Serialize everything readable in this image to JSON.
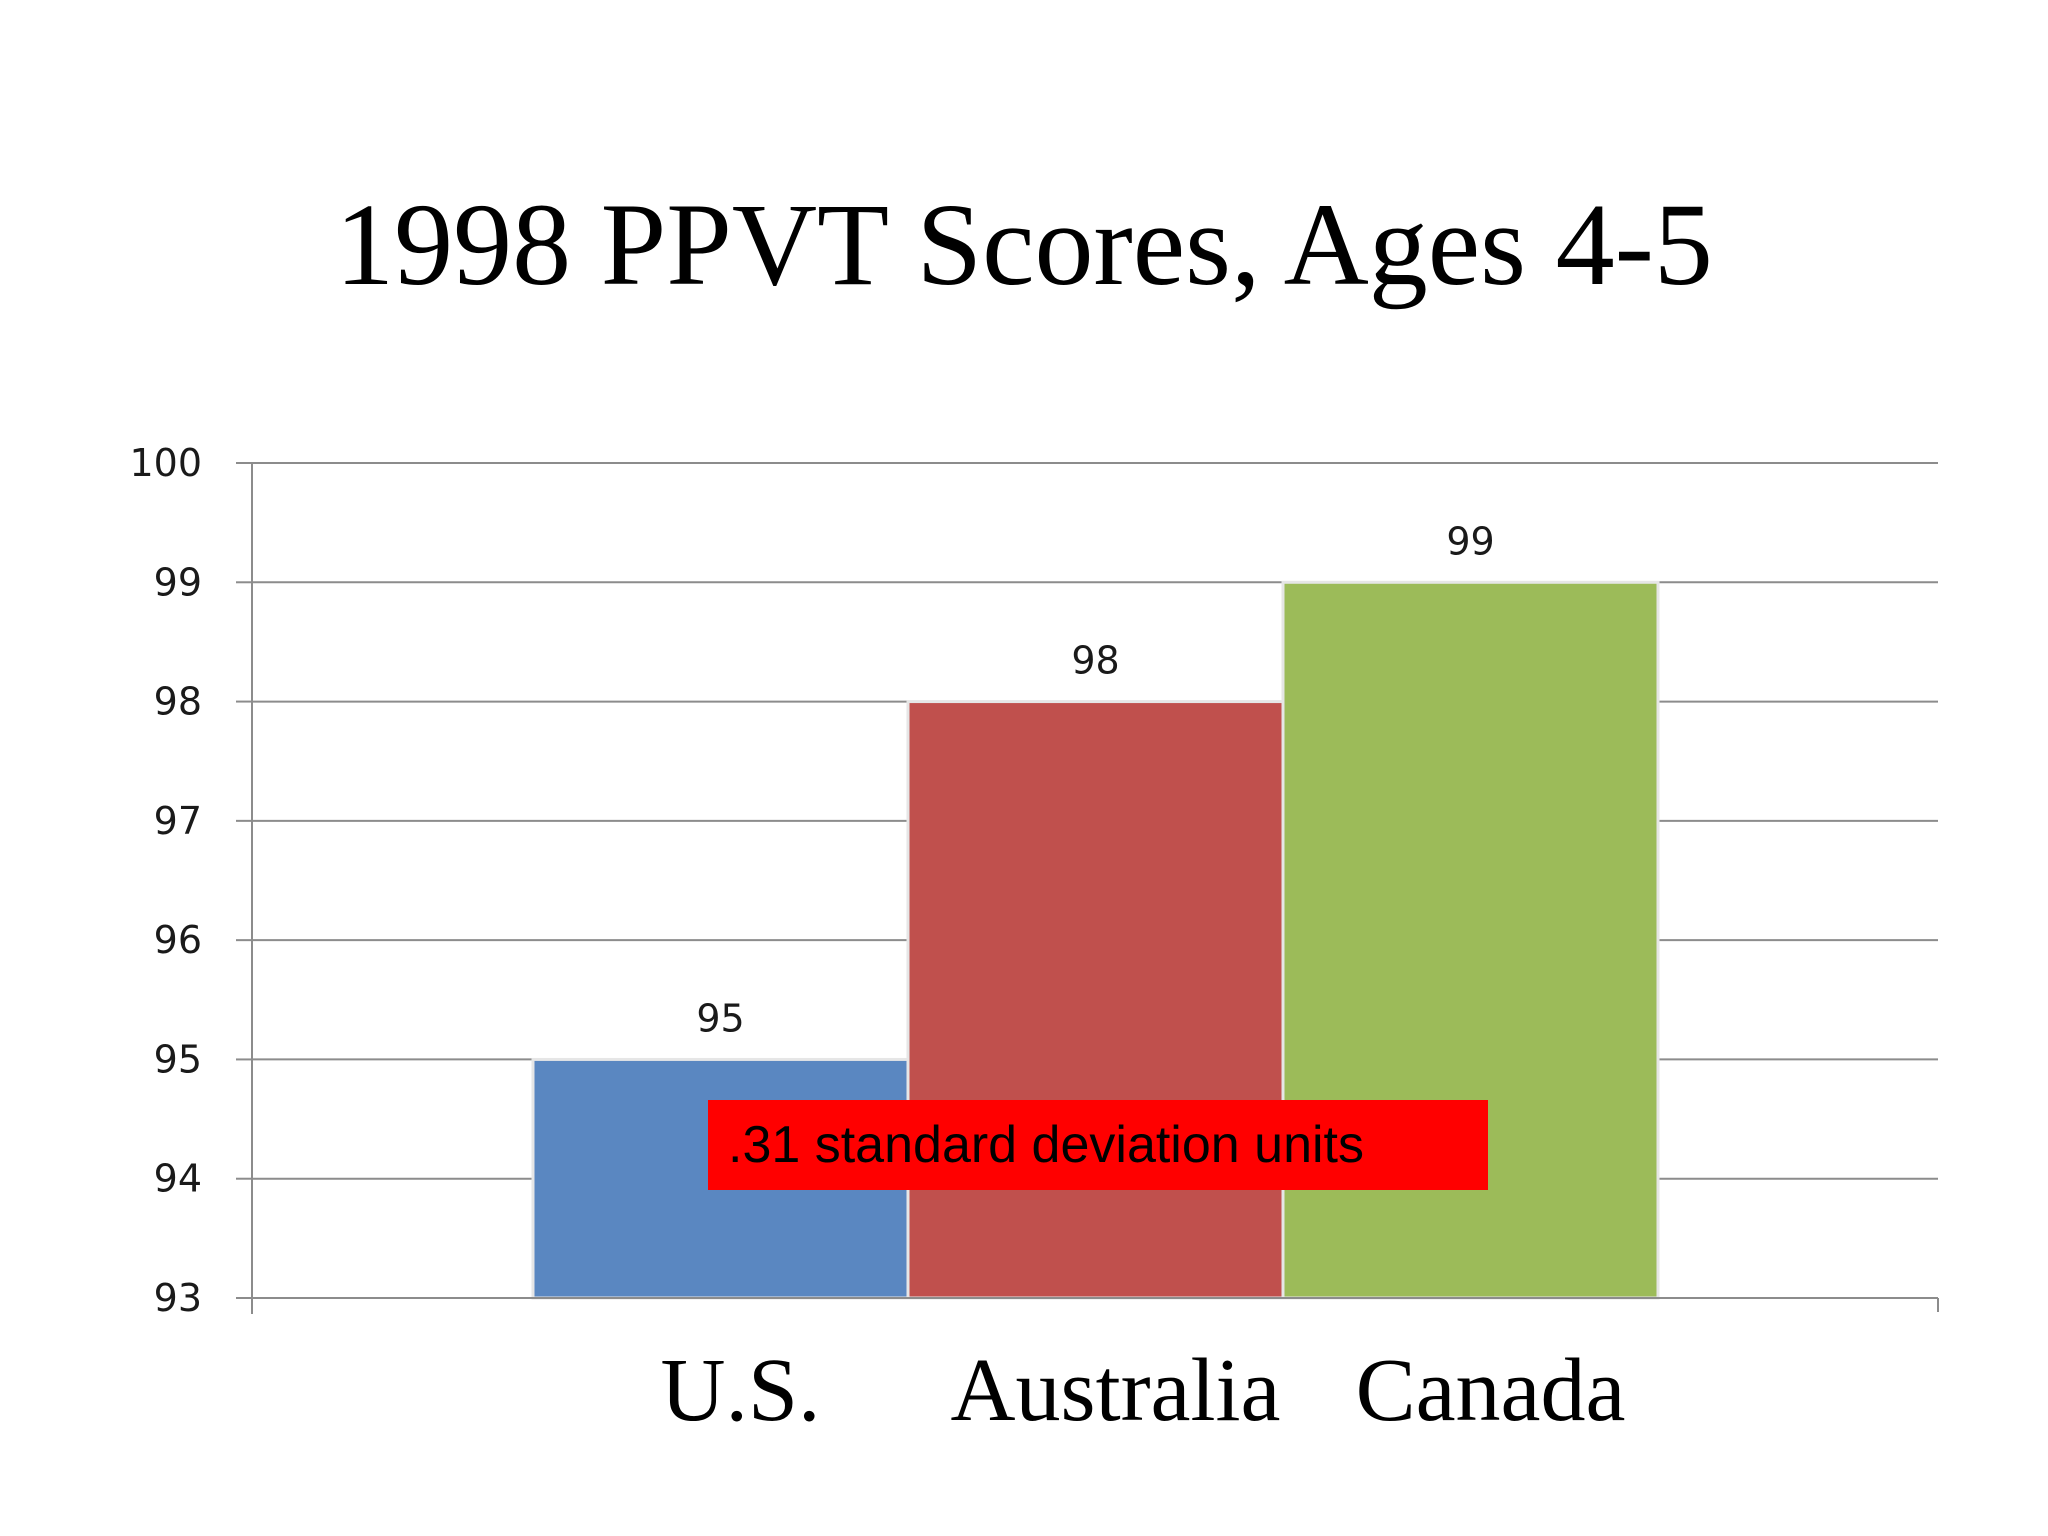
{
  "chart_data": {
    "type": "bar",
    "title": "1998 PPVT Scores, Ages 4-5",
    "categories": [
      "U.S.",
      "Australia",
      "Canada"
    ],
    "values": [
      95,
      98,
      99
    ],
    "data_labels": [
      "95",
      "98",
      "99"
    ],
    "colors": [
      "#5a87c1",
      "#c0504d",
      "#9cbb59"
    ],
    "ylim": [
      93,
      100
    ],
    "yticks": [
      93,
      94,
      95,
      96,
      97,
      98,
      99,
      100
    ],
    "ytick_labels": [
      "93",
      "94",
      "95",
      "96",
      "97",
      "98",
      "99",
      "100"
    ],
    "xlabel": "",
    "ylabel": "",
    "grid": true,
    "legend": "none",
    "annotation": ".31 standard deviation units",
    "annotation_color": "#ff0000"
  }
}
